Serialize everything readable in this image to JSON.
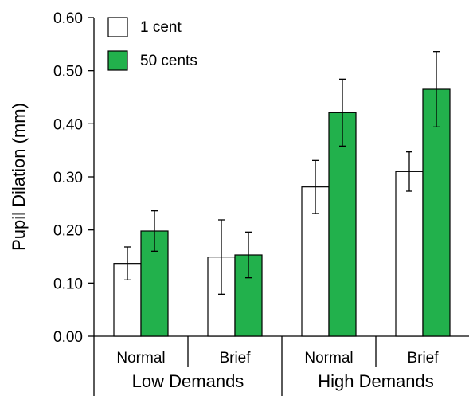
{
  "chart_data": {
    "type": "bar",
    "title": "",
    "xlabel": "",
    "ylabel": "Pupil Dilation (mm)",
    "ylim": [
      0,
      0.6
    ],
    "yticks": [
      "0.00",
      "0.10",
      "0.20",
      "0.30",
      "0.40",
      "0.50",
      "0.60"
    ],
    "yticks_values": [
      0,
      0.1,
      0.2,
      0.3,
      0.4,
      0.5,
      0.6
    ],
    "categories": [
      "Normal",
      "Brief",
      "Normal",
      "Brief"
    ],
    "groups": [
      {
        "label": "Low Demands",
        "category_indices": [
          0,
          1
        ]
      },
      {
        "label": "High Demands",
        "category_indices": [
          2,
          3
        ]
      }
    ],
    "series": [
      {
        "name": "1 cent",
        "color": "#ffffff",
        "values": [
          0.137,
          0.149,
          0.281,
          0.31
        ],
        "errors": [
          0.031,
          0.07,
          0.05,
          0.037
        ]
      },
      {
        "name": "50 cents",
        "color": "#22b14c",
        "values": [
          0.198,
          0.153,
          0.421,
          0.465
        ],
        "errors": [
          0.038,
          0.043,
          0.063,
          0.071
        ]
      }
    ],
    "legend_position": "top-left",
    "grid": false
  }
}
